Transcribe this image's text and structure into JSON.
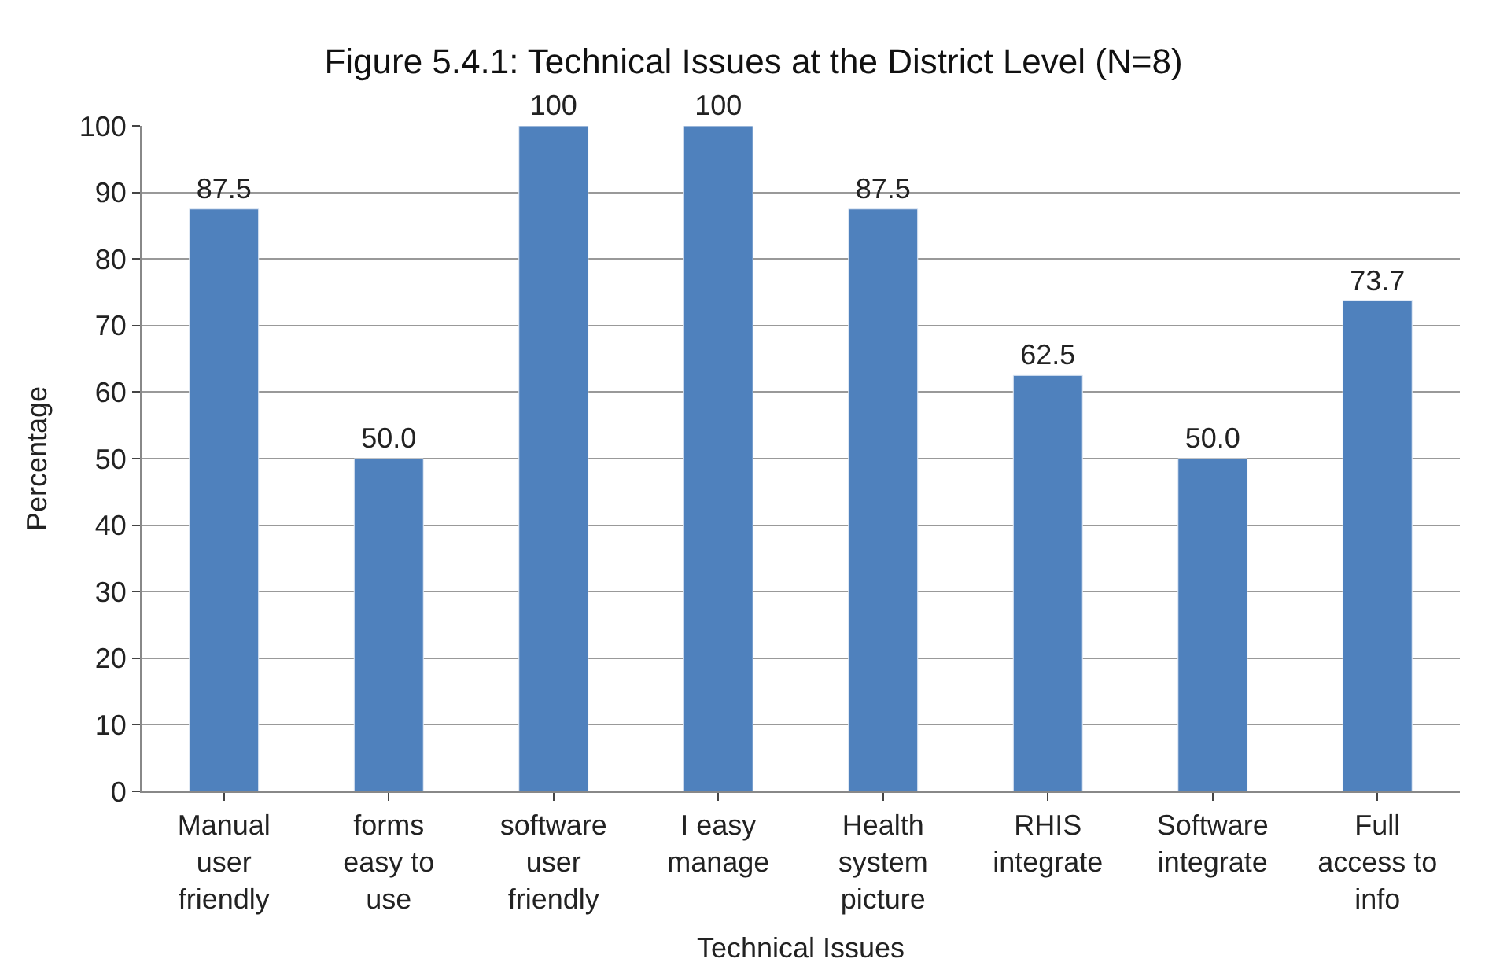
{
  "chart_data": {
    "type": "bar",
    "title": "Figure 5.4.1: Technical Issues at the District Level (N=8)",
    "xlabel": "Technical Issues",
    "ylabel": "Percentage",
    "categories": [
      "Manual\nuser\nfriendly",
      "forms\neasy to\nuse",
      "software\nuser\nfriendly",
      "I easy\nmanage",
      "Health\nsystem\npicture",
      "RHIS\nintegrate",
      "Software\nintegrate",
      "Full\naccess to\ninfo"
    ],
    "values": [
      87.5,
      50.0,
      100,
      100,
      87.5,
      62.5,
      50.0,
      73.7
    ],
    "value_labels": [
      "87.5",
      "50.0",
      "100",
      "100",
      "87.5",
      "62.5",
      "50.0",
      "73.7"
    ],
    "color": "#4f81bd",
    "ylim": [
      0,
      100
    ],
    "yticks": [
      0,
      10,
      20,
      30,
      40,
      50,
      60,
      70,
      80,
      90,
      100
    ],
    "grid": "y",
    "legend": false
  }
}
